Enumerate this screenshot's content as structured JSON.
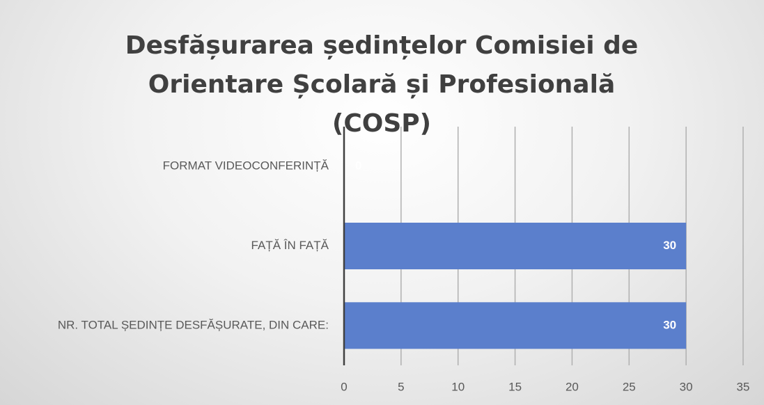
{
  "chart_data": {
    "type": "barh",
    "title": "Desfășurarea ședințelor Comisiei de Orientare Școlară și Profesională (COSP)",
    "categories": [
      "FORMAT VIDEOCONFERINȚĂ",
      "FAȚĂ ÎN FAȚĂ",
      "NR. TOTAL ȘEDINȚE DESFĂȘURATE, DIN CARE:"
    ],
    "values": [
      0,
      30,
      30
    ],
    "color": "#5b7fcc",
    "xlim": [
      0,
      35
    ],
    "xticks": [
      0,
      5,
      10,
      15,
      20,
      25,
      30,
      35
    ],
    "grid": true
  }
}
